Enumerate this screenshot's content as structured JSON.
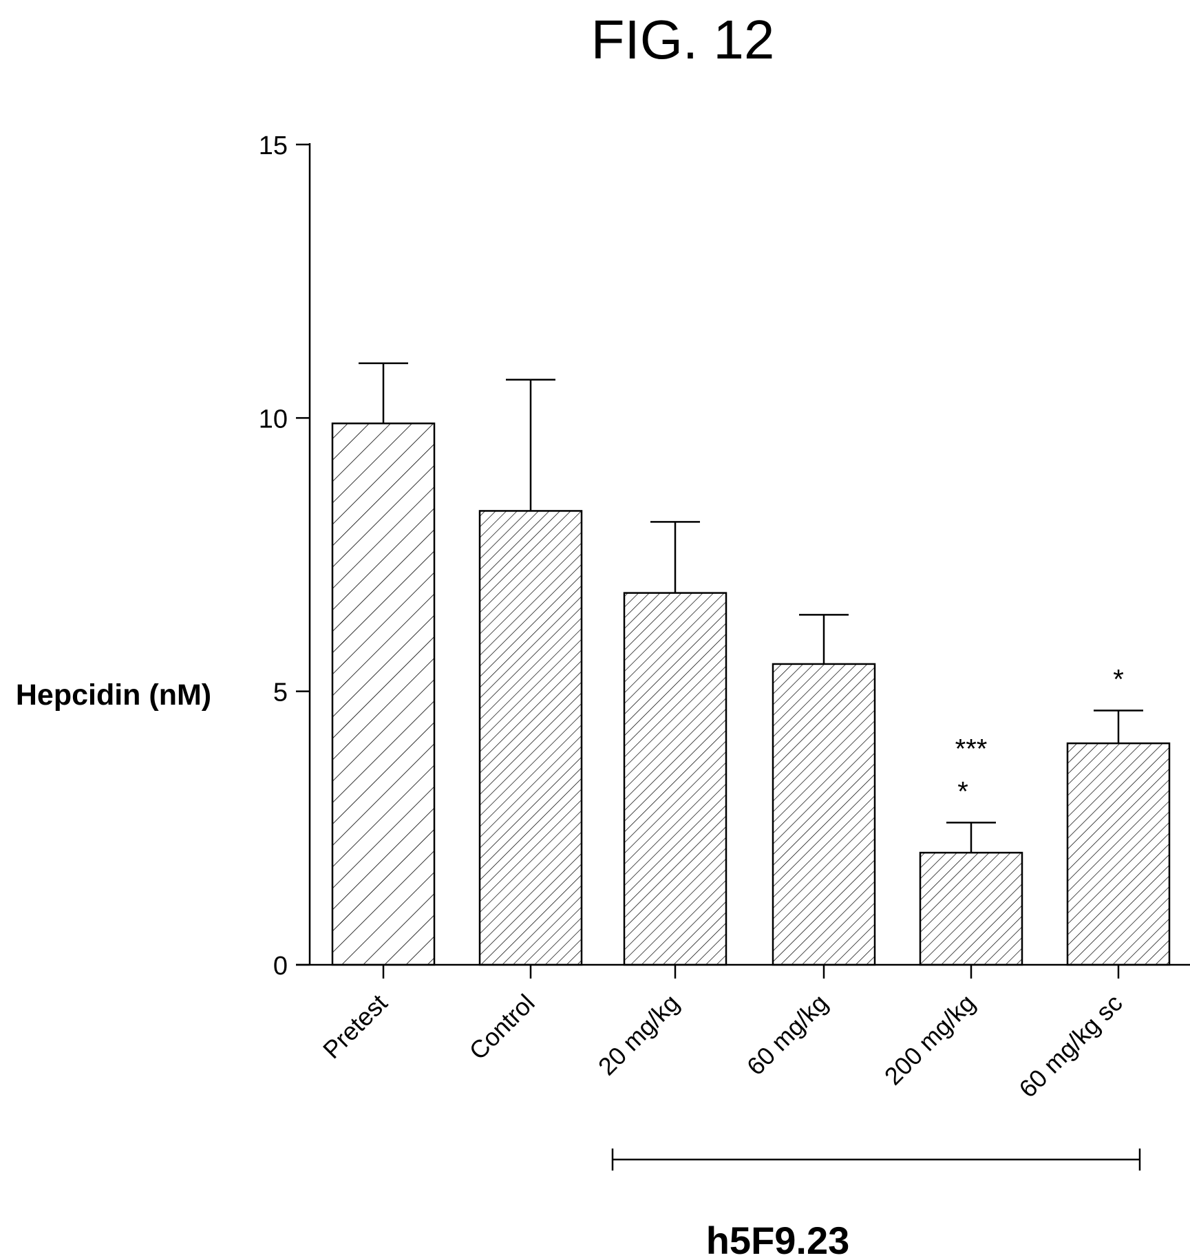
{
  "figure": {
    "title": "FIG. 12"
  },
  "chart_data": {
    "type": "bar",
    "ylabel": "Hepcidin (nM)",
    "xlabel": "",
    "ylim": [
      0,
      15
    ],
    "yticks": [
      "0",
      "5",
      "10",
      "15"
    ],
    "categories": [
      "Pretest",
      "Control",
      "20 mg/kg",
      "60 mg/kg",
      "200 mg/kg",
      "60 mg/kg sc"
    ],
    "values": [
      9.9,
      8.3,
      6.8,
      5.5,
      2.05,
      4.05
    ],
    "error_upper": [
      11.0,
      10.7,
      8.1,
      6.4,
      2.6,
      4.65
    ],
    "significance": [
      "",
      "",
      "",
      "",
      "***\n*",
      "*"
    ],
    "group": {
      "label": "h5F9.23",
      "from": "20 mg/kg",
      "to": "60 mg/kg sc"
    },
    "grid": false,
    "legend": "none"
  }
}
